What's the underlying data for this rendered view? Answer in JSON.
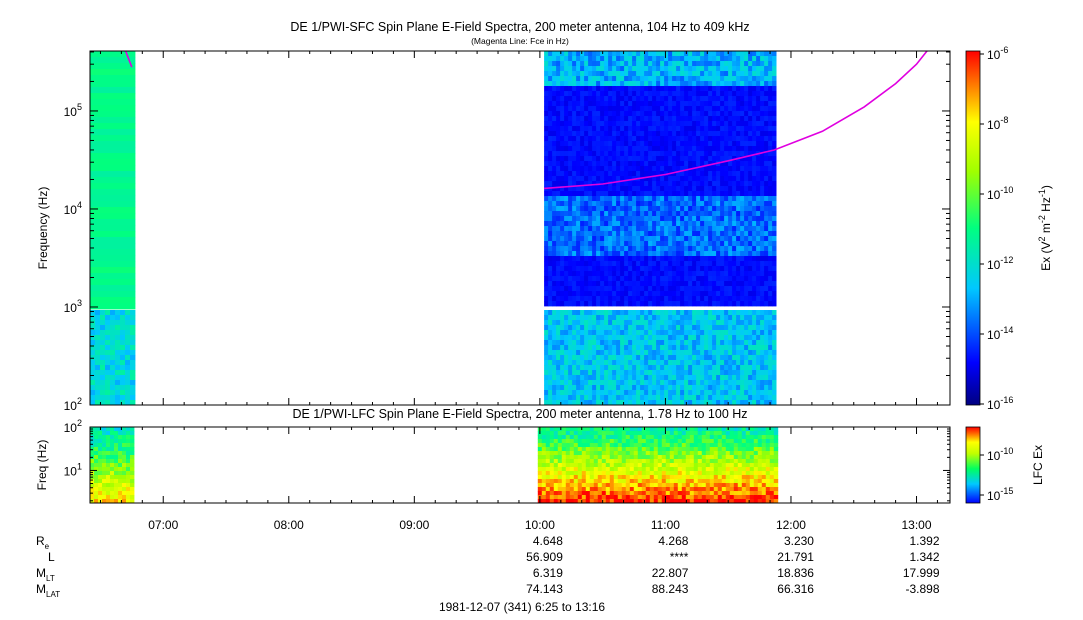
{
  "chart_data": [
    {
      "type": "heatmap",
      "title": "DE 1/PWI-SFC  Spin Plane E-Field Spectra, 200 meter antenna, 104 Hz to 409 kHz",
      "subtitle": "(Magenta Line: Fce in Hz)",
      "ylabel": "Frequency (Hz)",
      "yscale": "log",
      "ylim": [
        100,
        409000
      ],
      "y_ticks": [
        {
          "value": 100,
          "base": "10",
          "exp": "2"
        },
        {
          "value": 1000,
          "base": "10",
          "exp": "3"
        },
        {
          "value": 10000,
          "base": "10",
          "exp": "4"
        },
        {
          "value": 100000,
          "base": "10",
          "exp": "5"
        }
      ],
      "xlim": [
        "06:25",
        "13:16"
      ],
      "data_intervals": [
        {
          "start": "06:25",
          "end": "06:46"
        },
        {
          "start": "10:02",
          "end": "11:52"
        }
      ],
      "colorbar": {
        "label_parts": [
          "Ex (V",
          "2",
          " m",
          "-2",
          " Hz",
          "-1",
          ")"
        ],
        "scale": "log",
        "range": [
          1e-16,
          1e-06
        ],
        "ticks": [
          {
            "base": "10",
            "exp": "-6"
          },
          {
            "base": "10",
            "exp": "-8"
          },
          {
            "base": "10",
            "exp": "-10"
          },
          {
            "base": "10",
            "exp": "-12"
          },
          {
            "base": "10",
            "exp": "-14"
          },
          {
            "base": "10",
            "exp": "-16"
          }
        ]
      },
      "series": [
        {
          "name": "Fce",
          "color": "#e000e0",
          "x": [
            "06:42",
            "06:45",
            "10:02",
            "10:30",
            "11:00",
            "11:30",
            "11:52",
            "12:15",
            "12:35",
            "12:50",
            "13:00",
            "13:05"
          ],
          "y": [
            409000,
            280000,
            16200,
            18000,
            22500,
            31000,
            40000,
            62000,
            110000,
            190000,
            300000,
            409000
          ]
        }
      ]
    },
    {
      "type": "heatmap",
      "title": "DE 1/PWI-LFC  Spin Plane E-Field Spectra, 200 meter antenna, 1.78 Hz to 100 Hz",
      "ylabel": "Freq (Hz)",
      "yscale": "log",
      "ylim": [
        1.78,
        100
      ],
      "y_ticks": [
        {
          "value": 10,
          "base": "10",
          "exp": "1"
        },
        {
          "value": 100,
          "base": "10",
          "exp": "2"
        }
      ],
      "xlim": [
        "06:25",
        "13:16"
      ],
      "data_intervals": [
        {
          "start": "06:25",
          "end": "06:46"
        },
        {
          "start": "09:59",
          "end": "11:52"
        }
      ],
      "colorbar": {
        "label": "LFC Ex",
        "scale": "log",
        "ticks": [
          {
            "base": "10",
            "exp": "-10"
          },
          {
            "base": "10",
            "exp": "-15"
          }
        ]
      }
    }
  ],
  "x_axis": {
    "tick_labels": [
      "07:00",
      "08:00",
      "09:00",
      "10:00",
      "11:00",
      "12:00",
      "13:00"
    ]
  },
  "ephemeris": {
    "rows": [
      {
        "label_main": "R",
        "label_sub": "e",
        "values": [
          "4.648",
          "4.268",
          "3.230",
          "1.392"
        ]
      },
      {
        "label_main": "L",
        "label_sub": "",
        "values": [
          "56.909",
          "****",
          "21.791",
          "1.342"
        ]
      },
      {
        "label_main": "M",
        "label_sub": "LT",
        "values": [
          "6.319",
          "22.807",
          "18.836",
          "17.999"
        ]
      },
      {
        "label_main": "M",
        "label_sub": "LAT",
        "values": [
          "74.143",
          "88.243",
          "66.316",
          "-3.898"
        ]
      }
    ]
  },
  "date_range_label": "1981-12-07 (341) 6:25 to 13:16"
}
